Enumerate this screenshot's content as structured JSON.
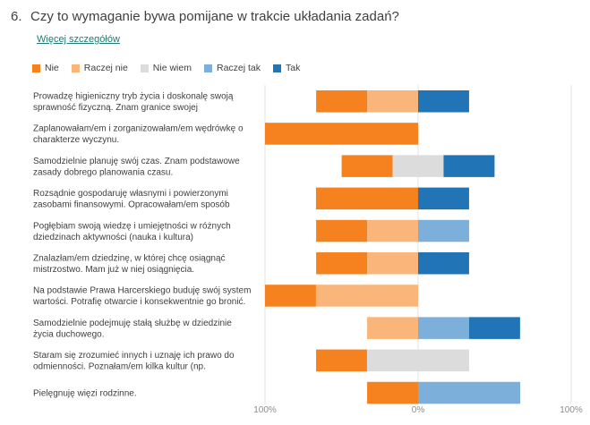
{
  "question": {
    "number": "6.",
    "text": "Czy to wymaganie bywa pomijane w trakcie układania zadań?",
    "details_link": "Więcej szczegółów"
  },
  "colors": {
    "Nie": "#f5821f",
    "Raczej nie": "#f9b57a",
    "Nie wiem": "#dcdcdc",
    "Raczej tak": "#7cafd9",
    "Tak": "#2174b5"
  },
  "chart_data": {
    "type": "bar",
    "orientation": "horizontal",
    "stacking": "diverging",
    "legend_position": "top-left",
    "legend": [
      "Nie",
      "Raczej nie",
      "Nie wiem",
      "Raczej tak",
      "Tak"
    ],
    "categories": [
      [
        "Prowadzę higieniczny tryb życia i doskonalę swoją",
        "sprawność fizyczną. Znam granice swojej"
      ],
      [
        "Zaplanowałam/em i zorganizowałam/em wędrówkę o",
        "charakterze wyczynu."
      ],
      [
        "Samodzielnie planuję swój czas. Znam podstawowe",
        "zasady dobrego planowania czasu."
      ],
      [
        "Rozsądnie gospodaruję własnymi i powierzonymi",
        "zasobami finansowymi. Opracowałam/em sposób"
      ],
      [
        "Pogłębiam swoją wiedzę i umiejętności w różnych",
        "dziedzinach aktywności (nauka i kultura)"
      ],
      [
        "Znalazłam/em dziedzinę, w której chcę osiągnąć",
        "mistrzostwo. Mam już w niej osiągnięcia."
      ],
      [
        "Na podstawie Prawa Harcerskiego buduję swój system",
        "wartości. Potrafię otwarcie i konsekwentnie go bronić."
      ],
      [
        "Samodzielnie podejmuję stałą służbę w dziedzinie",
        "życia duchowego."
      ],
      [
        "Staram się zrozumieć innych i uznaję ich prawo do",
        "odmienności. Poznałam/em kilka kultur (np."
      ],
      [
        "Pielęgnuję więzi rodzinne."
      ]
    ],
    "series": [
      {
        "name": "Nie",
        "values": [
          33.3,
          100,
          33.3,
          66.7,
          33.3,
          33.3,
          33.3,
          0,
          33.3,
          33.3
        ]
      },
      {
        "name": "Raczej nie",
        "values": [
          33.3,
          0,
          0,
          0,
          33.3,
          33.3,
          66.7,
          33.3,
          0,
          0
        ]
      },
      {
        "name": "Nie wiem",
        "values": [
          0,
          0,
          33.3,
          0,
          0,
          0,
          0,
          0,
          66.7,
          0
        ]
      },
      {
        "name": "Raczej tak",
        "values": [
          0,
          0,
          0,
          0,
          33.3,
          0,
          0,
          33.3,
          0,
          66.7
        ]
      },
      {
        "name": "Tak",
        "values": [
          33.3,
          0,
          33.3,
          33.3,
          0,
          33.3,
          0,
          33.3,
          0,
          0
        ]
      }
    ],
    "x_tick_labels": [
      "100%",
      "0%",
      "100%"
    ],
    "xlim": [
      -100,
      100
    ]
  }
}
